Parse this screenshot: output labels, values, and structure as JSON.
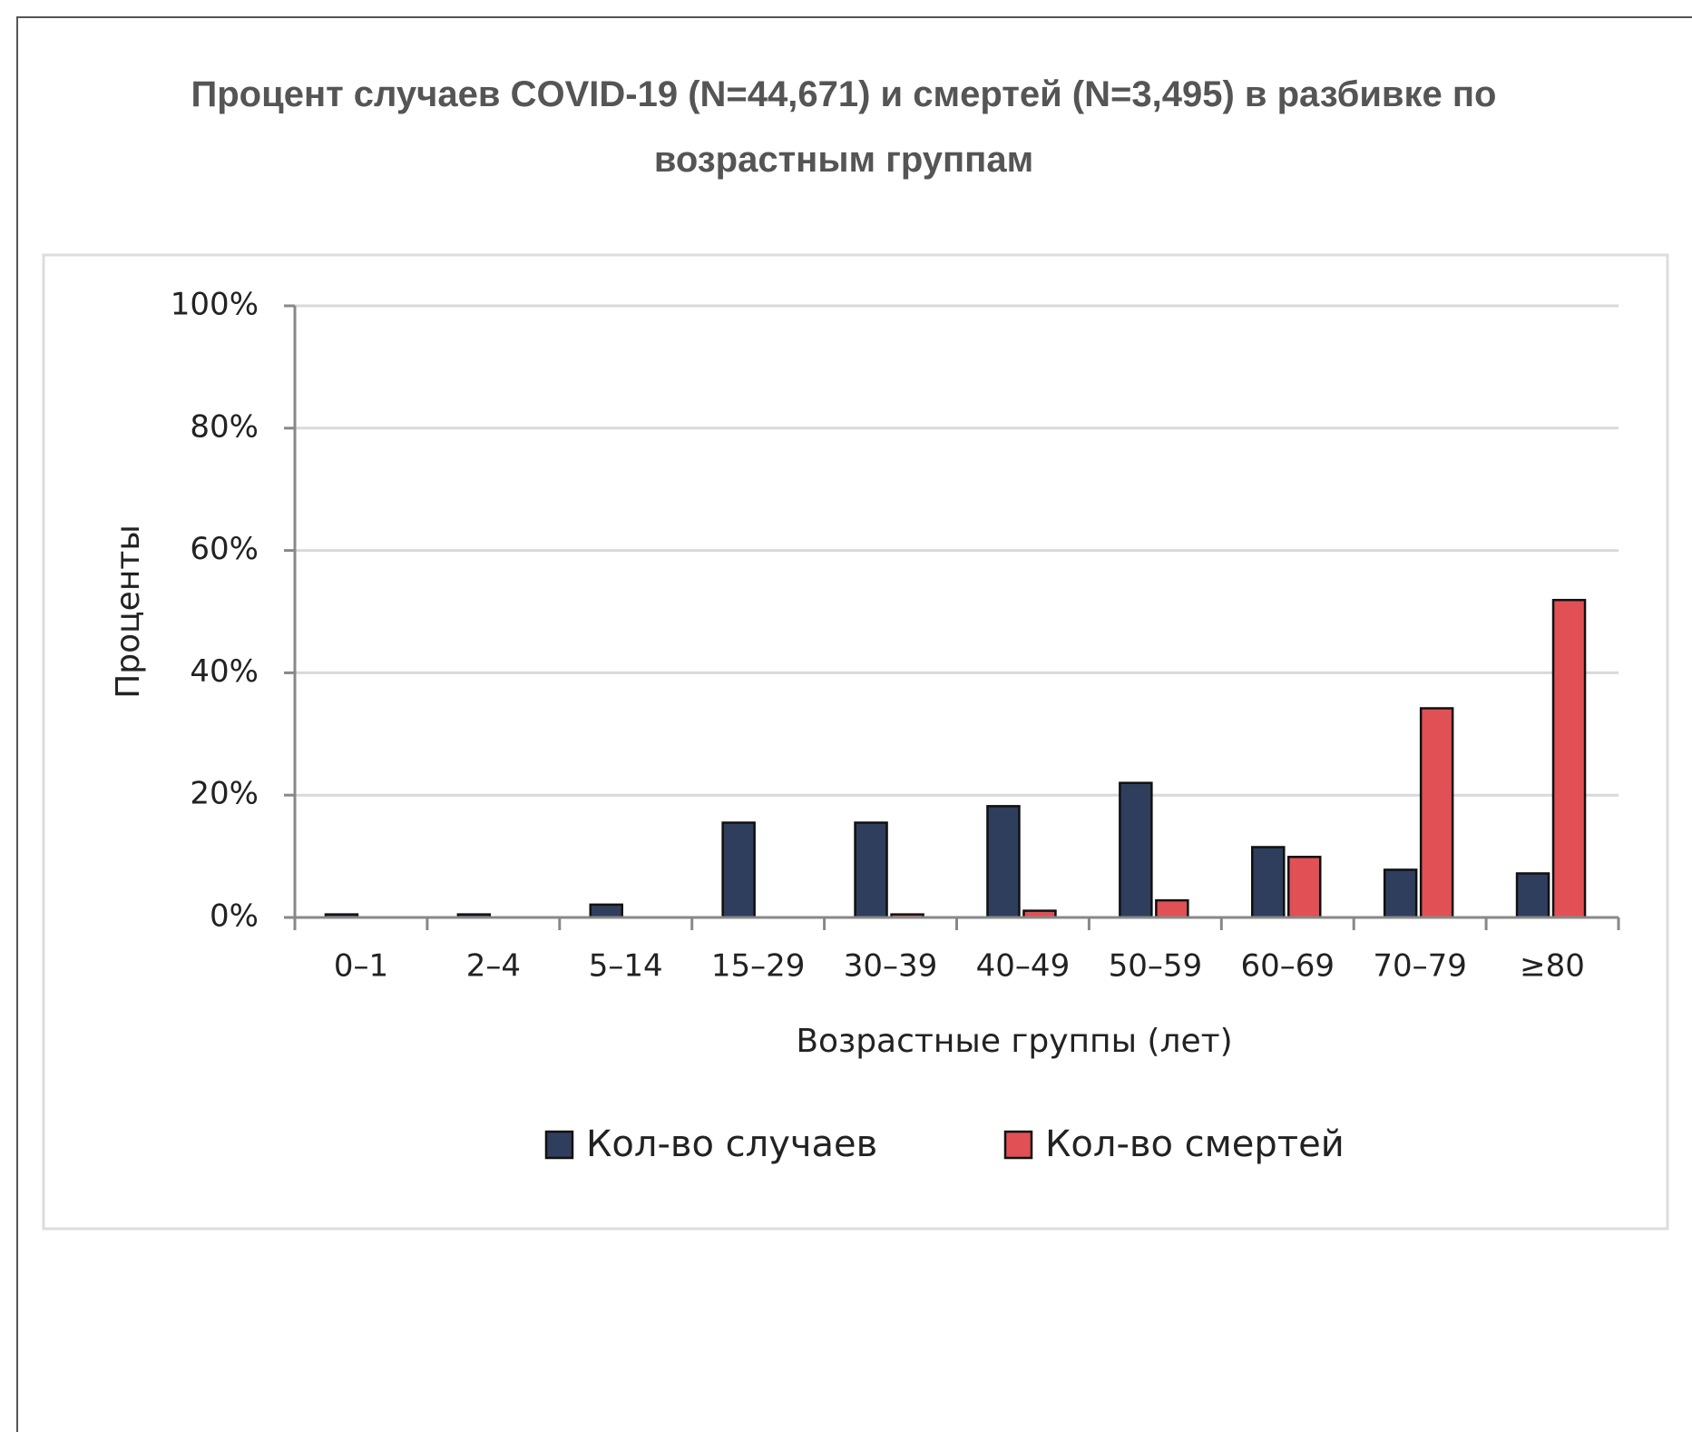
{
  "chart_data": {
    "type": "bar",
    "title": "Процент случаев COVID-19 (N=44,671) и смертей (N=3,495) в разбивке по возрастным группам",
    "x_label": "Возрастные группы (лет)",
    "y_label": "Проценты",
    "categories": [
      "0–1",
      "2–4",
      "5–14",
      "15–29",
      "30–39",
      "40–49",
      "50–59",
      "60–69",
      "70–79",
      "≥80"
    ],
    "series": [
      {
        "name": "Кол-во случаев",
        "color": "#2f3e5c",
        "values": [
          0.5,
          0.5,
          2.1,
          15.5,
          15.5,
          18.2,
          22.0,
          11.5,
          7.8,
          7.2
        ]
      },
      {
        "name": "Кол-во смертей",
        "color": "#e05055",
        "values": [
          0,
          0,
          0,
          0,
          0.5,
          1.1,
          2.8,
          9.9,
          34.2,
          51.9
        ]
      }
    ],
    "ylim": [
      0,
      100
    ],
    "yticks": [
      {
        "value": 0,
        "label": "0%"
      },
      {
        "value": 20,
        "label": "20%"
      },
      {
        "value": 40,
        "label": "40%"
      },
      {
        "value": 60,
        "label": "60%"
      },
      {
        "value": 80,
        "label": "80%"
      },
      {
        "value": 100,
        "label": "100%"
      }
    ],
    "grid": true,
    "legend": "bottom"
  }
}
